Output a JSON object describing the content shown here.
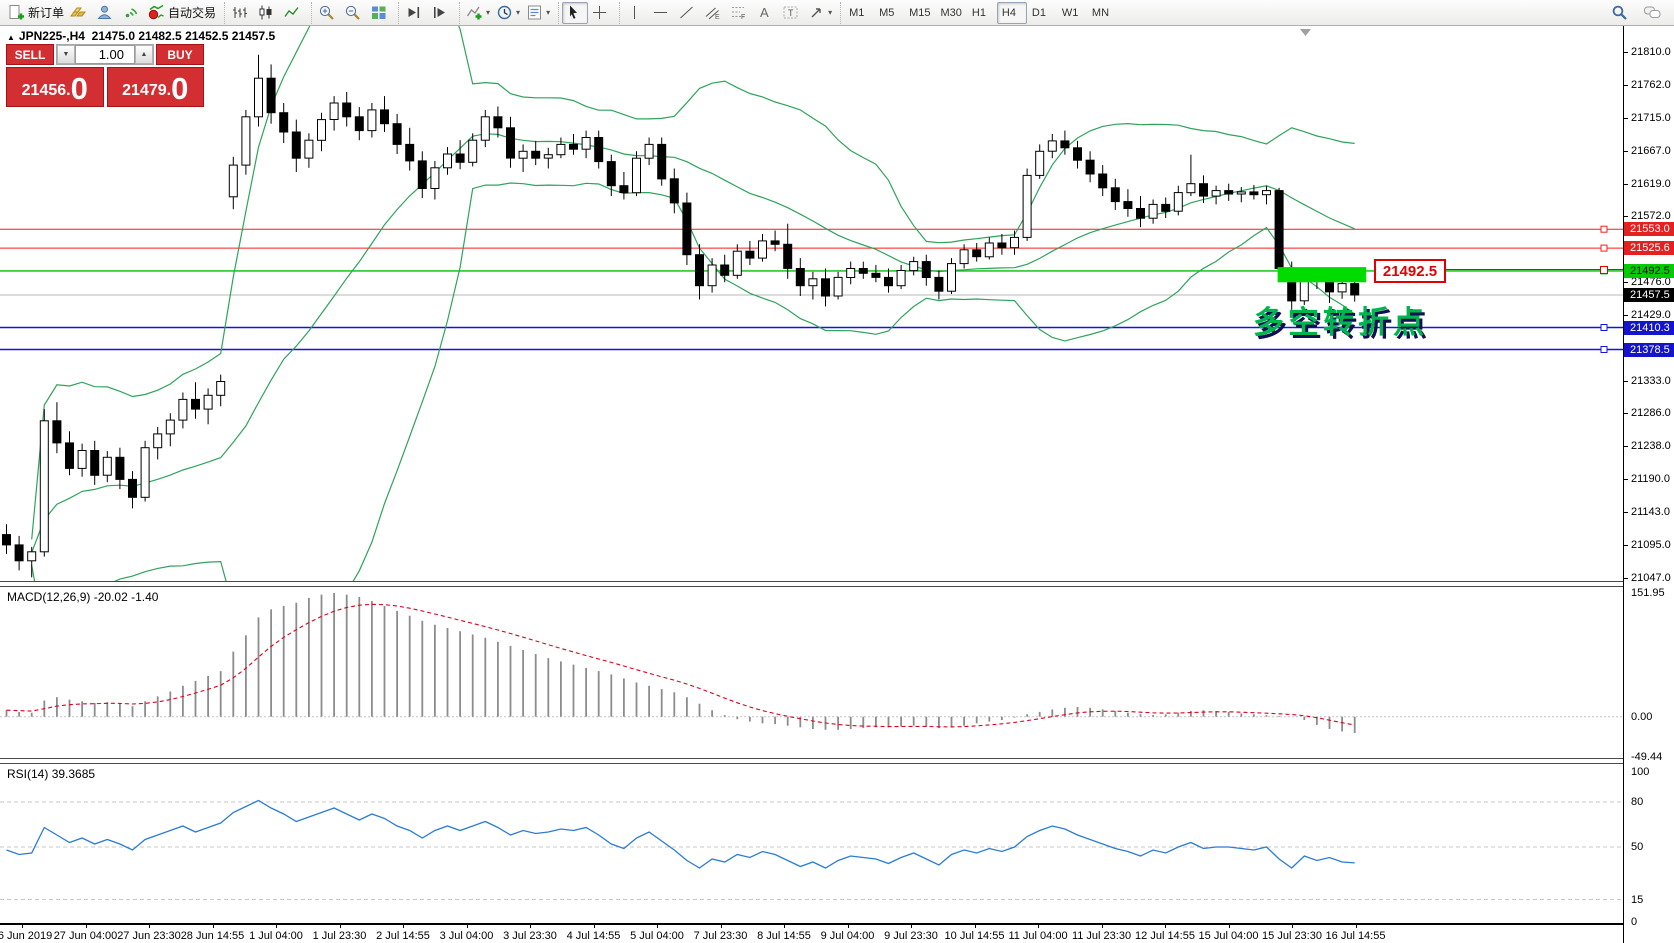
{
  "toolbar": {
    "new_order": "新订单",
    "auto_trading": "自动交易",
    "timeframes": [
      "M1",
      "M5",
      "M15",
      "M30",
      "H1",
      "H4",
      "D1",
      "W1",
      "MN"
    ],
    "active_timeframe": "H4"
  },
  "icons": {
    "volume_down": "▼",
    "volume_up": "▲",
    "dropdown": "▾",
    "symbol_marker": "▲"
  },
  "chart": {
    "symbol": "JPN225-,H4",
    "ohlc": "21475.0 21482.5 21452.5 21457.5"
  },
  "trade_panel": {
    "sell_label": "SELL",
    "buy_label": "BUY",
    "volume": "1.00",
    "sell_price_main": "21456",
    "sell_price_big": "0",
    "buy_price_main": "21479",
    "buy_price_big": "0",
    "decimal_point": "."
  },
  "annotation": {
    "text": "多空转折点"
  },
  "callout": {
    "text": "21492.5"
  },
  "price_axis": {
    "ticks": [
      21810,
      21762,
      21715,
      21667,
      21619,
      21572,
      21476,
      21429,
      21333,
      21286,
      21238,
      21190,
      21143,
      21095,
      21047
    ]
  },
  "time_axis": {
    "labels": [
      "26 Jun 2019",
      "27 Jun 04:00",
      "27 Jun 23:30",
      "28 Jun 14:55",
      "1 Jul 04:00",
      "1 Jul 23:30",
      "2 Jul 14:55",
      "3 Jul 04:00",
      "3 Jul 23:30",
      "4 Jul 14:55",
      "5 Jul 04:00",
      "7 Jul 23:30",
      "8 Jul 14:55",
      "9 Jul 04:00",
      "9 Jul 23:30",
      "10 Jul 14:55",
      "11 Jul 04:00",
      "11 Jul 23:30",
      "12 Jul 14:55",
      "15 Jul 04:00",
      "15 Jul 23:30",
      "16 Jul 14:55"
    ]
  },
  "chart_data": [
    {
      "type": "candlestick",
      "title": "JPN225-,H4",
      "bollinger_color": "#2fa35c",
      "levels": [
        {
          "price": 21553.0,
          "label": "21553.0",
          "line": "#ff1a1a",
          "badge_bg": "#e52020",
          "badge_fg": "#ffffff",
          "handle": true,
          "width": 1
        },
        {
          "price": 21525.6,
          "label": "21525.6",
          "line": "#ff1a1a",
          "badge_bg": "#e52020",
          "badge_fg": "#ffffff",
          "handle": true,
          "width": 1
        },
        {
          "price": 21492.5,
          "label": "21492.5",
          "line": "#00bf00",
          "badge_bg": "#00cc00",
          "badge_fg": "#000000",
          "handle": true,
          "width": 1.4
        },
        {
          "price": 21457.5,
          "label": "21457.5",
          "line": "#b8b8b8",
          "badge_bg": "#000000",
          "badge_fg": "#ffffff",
          "handle": false,
          "width": 1
        },
        {
          "price": 21410.3,
          "label": "21410.3",
          "line": "#1414e0",
          "badge_bg": "#1414cc",
          "badge_fg": "#ffffff",
          "handle": true,
          "width": 1.4
        },
        {
          "price": 21378.5,
          "label": "21378.5",
          "line": "#1414e0",
          "badge_bg": "#1414cc",
          "badge_fg": "#ffffff",
          "handle": true,
          "width": 1.4
        }
      ],
      "green_zone": {
        "price_top": 21498,
        "price_bottom": 21476,
        "bar_from": 101.2,
        "bar_to": 107.6,
        "color": "#00dc00"
      },
      "candles": [
        [
          21110,
          21125,
          21082,
          21095
        ],
        [
          21095,
          21108,
          21058,
          21072
        ],
        [
          21072,
          21092,
          21048,
          21085
        ],
        [
          21085,
          21292,
          21078,
          21275
        ],
        [
          21275,
          21302,
          21228,
          21243
        ],
        [
          21243,
          21260,
          21196,
          21206
        ],
        [
          21206,
          21242,
          21194,
          21232
        ],
        [
          21232,
          21246,
          21182,
          21196
        ],
        [
          21196,
          21231,
          21186,
          21222
        ],
        [
          21222,
          21236,
          21176,
          21190
        ],
        [
          21190,
          21202,
          21148,
          21164
        ],
        [
          21164,
          21246,
          21158,
          21236
        ],
        [
          21236,
          21266,
          21219,
          21256
        ],
        [
          21256,
          21286,
          21238,
          21276
        ],
        [
          21276,
          21316,
          21264,
          21306
        ],
        [
          21306,
          21331,
          21278,
          21292
        ],
        [
          21292,
          21322,
          21270,
          21312
        ],
        [
          21312,
          21342,
          21296,
          21332
        ],
        [
          21600,
          21658,
          21582,
          21646
        ],
        [
          21646,
          21726,
          21632,
          21716
        ],
        [
          21716,
          21806,
          21702,
          21772
        ],
        [
          21772,
          21792,
          21706,
          21722
        ],
        [
          21722,
          21736,
          21678,
          21694
        ],
        [
          21694,
          21712,
          21636,
          21656
        ],
        [
          21656,
          21692,
          21642,
          21682
        ],
        [
          21682,
          21722,
          21666,
          21712
        ],
        [
          21712,
          21746,
          21696,
          21736
        ],
        [
          21736,
          21752,
          21702,
          21716
        ],
        [
          21716,
          21730,
          21682,
          21696
        ],
        [
          21696,
          21736,
          21686,
          21726
        ],
        [
          21726,
          21746,
          21694,
          21706
        ],
        [
          21706,
          21720,
          21662,
          21676
        ],
        [
          21676,
          21700,
          21638,
          21652
        ],
        [
          21652,
          21666,
          21598,
          21612
        ],
        [
          21612,
          21652,
          21596,
          21642
        ],
        [
          21642,
          21672,
          21632,
          21662
        ],
        [
          21662,
          21682,
          21640,
          21650
        ],
        [
          21650,
          21692,
          21644,
          21682
        ],
        [
          21682,
          21726,
          21672,
          21716
        ],
        [
          21716,
          21731,
          21686,
          21700
        ],
        [
          21700,
          21716,
          21642,
          21656
        ],
        [
          21656,
          21676,
          21636,
          21666
        ],
        [
          21666,
          21681,
          21646,
          21656
        ],
        [
          21656,
          21671,
          21641,
          21661
        ],
        [
          21661,
          21686,
          21656,
          21676
        ],
        [
          21676,
          21691,
          21661,
          21669
        ],
        [
          21669,
          21696,
          21656,
          21686
        ],
        [
          21686,
          21696,
          21641,
          21651
        ],
        [
          21651,
          21661,
          21601,
          21616
        ],
        [
          21616,
          21636,
          21596,
          21606
        ],
        [
          21606,
          21666,
          21601,
          21656
        ],
        [
          21656,
          21686,
          21646,
          21676
        ],
        [
          21676,
          21686,
          21616,
          21626
        ],
        [
          21626,
          21641,
          21576,
          21591
        ],
        [
          21591,
          21606,
          21501,
          21516
        ],
        [
          21516,
          21531,
          21451,
          21471
        ],
        [
          21471,
          21511,
          21461,
          21501
        ],
        [
          21501,
          21516,
          21476,
          21486
        ],
        [
          21486,
          21531,
          21481,
          21521
        ],
        [
          21521,
          21536,
          21501,
          21511
        ],
        [
          21511,
          21546,
          21506,
          21536
        ],
        [
          21536,
          21551,
          21521,
          21531
        ],
        [
          21531,
          21561,
          21481,
          21496
        ],
        [
          21496,
          21511,
          21456,
          21471
        ],
        [
          21471,
          21491,
          21451,
          21481
        ],
        [
          21481,
          21496,
          21441,
          21456
        ],
        [
          21456,
          21491,
          21451,
          21483
        ],
        [
          21483,
          21506,
          21473,
          21496
        ],
        [
          21496,
          21506,
          21481,
          21489
        ],
        [
          21489,
          21501,
          21476,
          21483
        ],
        [
          21483,
          21496,
          21461,
          21471
        ],
        [
          21471,
          21501,
          21466,
          21493
        ],
        [
          21493,
          21513,
          21486,
          21506
        ],
        [
          21506,
          21516,
          21471,
          21483
        ],
        [
          21483,
          21493,
          21451,
          21463
        ],
        [
          21463,
          21511,
          21459,
          21503
        ],
        [
          21503,
          21531,
          21496,
          21523
        ],
        [
          21523,
          21533,
          21506,
          21513
        ],
        [
          21513,
          21541,
          21509,
          21533
        ],
        [
          21533,
          21546,
          21516,
          21526
        ],
        [
          21526,
          21551,
          21516,
          21541
        ],
        [
          21541,
          21641,
          21536,
          21631
        ],
        [
          21631,
          21676,
          21626,
          21666
        ],
        [
          21666,
          21691,
          21656,
          21681
        ],
        [
          21681,
          21696,
          21661,
          21671
        ],
        [
          21671,
          21681,
          21641,
          21653
        ],
        [
          21653,
          21666,
          21621,
          21633
        ],
        [
          21633,
          21646,
          21601,
          21613
        ],
        [
          21613,
          21626,
          21581,
          21593
        ],
        [
          21593,
          21611,
          21571,
          21583
        ],
        [
          21583,
          21601,
          21556,
          21569
        ],
        [
          21569,
          21596,
          21561,
          21589
        ],
        [
          21589,
          21599,
          21569,
          21579
        ],
        [
          21579,
          21616,
          21573,
          21606
        ],
        [
          21606,
          21661,
          21601,
          21619
        ],
        [
          21619,
          21631,
          21591,
          21601
        ],
        [
          21601,
          21616,
          21589,
          21609
        ],
        [
          21609,
          21619,
          21594,
          21604
        ],
        [
          21604,
          21614,
          21592,
          21607
        ],
        [
          21607,
          21617,
          21596,
          21603
        ],
        [
          21603,
          21616,
          21589,
          21609
        ],
        [
          21609,
          21613,
          21481,
          21496
        ],
        [
          21496,
          21506,
          21436,
          21449
        ],
        [
          21449,
          21491,
          21443,
          21484
        ],
        [
          21484,
          21494,
          21466,
          21477
        ],
        [
          21477,
          21489,
          21446,
          21462
        ],
        [
          21462,
          21483,
          21452,
          21474
        ],
        [
          21474,
          21483,
          21448,
          21457.5
        ]
      ]
    },
    {
      "type": "bar",
      "name": "MACD(12,26,9)",
      "values_text": "-20.02 -1.40",
      "axis": [
        {
          "v": 151.95,
          "label": "151.95"
        },
        {
          "v": 0,
          "label": "0.00"
        },
        {
          "v": -49.44,
          "label": "-49.44"
        }
      ],
      "histogram_color": "#8c8c8c",
      "signal_color": "#e00020",
      "histogram": [
        8,
        6,
        5,
        20,
        24,
        21,
        19,
        17,
        18,
        16,
        13,
        19,
        25,
        31,
        38,
        44,
        50,
        56,
        80,
        100,
        122,
        132,
        136,
        140,
        146,
        150,
        152,
        150,
        147,
        142,
        136,
        130,
        124,
        118,
        113,
        109,
        105,
        101,
        97,
        92,
        87,
        82,
        77,
        72,
        68,
        64,
        60,
        56,
        52,
        47,
        42,
        38,
        34,
        30,
        24,
        16,
        8,
        2,
        -3,
        -6,
        -8,
        -9,
        -11,
        -13,
        -15,
        -16,
        -16,
        -15,
        -14,
        -13,
        -13,
        -12,
        -11,
        -12,
        -14,
        -13,
        -11,
        -8,
        -6,
        -4,
        -1,
        3,
        6,
        9,
        11,
        12,
        11,
        9,
        7,
        5,
        3,
        2,
        3,
        5,
        7,
        8,
        7,
        6,
        4,
        3,
        2,
        1,
        0,
        -4,
        -10,
        -15,
        -18,
        -20.02
      ]
    },
    {
      "type": "line",
      "name": "RSI(14)",
      "value_text": "39.3685",
      "axis": [
        100,
        80,
        50,
        15,
        0
      ],
      "gridlines": [
        80,
        50,
        15
      ],
      "line_color": "#2b7cd3",
      "values": [
        48,
        45,
        46,
        63,
        58,
        53,
        56,
        52,
        55,
        52,
        48,
        55,
        58,
        61,
        64,
        60,
        63,
        66,
        73,
        77,
        81,
        76,
        72,
        67,
        70,
        73,
        76,
        72,
        68,
        72,
        69,
        64,
        61,
        56,
        61,
        64,
        61,
        64,
        67,
        63,
        58,
        61,
        59,
        60,
        62,
        61,
        63,
        58,
        52,
        49,
        56,
        60,
        54,
        48,
        41,
        36,
        42,
        40,
        45,
        43,
        47,
        45,
        41,
        37,
        40,
        36,
        41,
        44,
        43,
        42,
        39,
        43,
        46,
        42,
        38,
        45,
        48,
        46,
        49,
        47,
        50,
        57,
        61,
        64,
        62,
        58,
        55,
        52,
        49,
        47,
        44,
        48,
        46,
        50,
        53,
        49,
        50,
        50,
        49,
        48,
        50,
        42,
        36,
        44,
        41,
        43,
        40,
        39.37
      ]
    }
  ]
}
